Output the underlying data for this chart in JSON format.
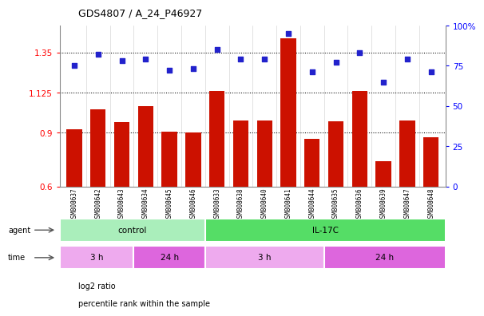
{
  "title": "GDS4807 / A_24_P46927",
  "samples": [
    "GSM808637",
    "GSM808642",
    "GSM808643",
    "GSM808634",
    "GSM808645",
    "GSM808646",
    "GSM808633",
    "GSM808638",
    "GSM808640",
    "GSM808641",
    "GSM808644",
    "GSM808635",
    "GSM808636",
    "GSM808639",
    "GSM808647",
    "GSM808648"
  ],
  "log2_ratio": [
    0.92,
    1.03,
    0.96,
    1.05,
    0.905,
    0.9,
    1.135,
    0.97,
    0.97,
    1.43,
    0.865,
    0.965,
    1.135,
    0.74,
    0.97,
    0.875
  ],
  "percentile": [
    75,
    82,
    78,
    79,
    72,
    73,
    85,
    79,
    79,
    95,
    71,
    77,
    83,
    65,
    79,
    71
  ],
  "ylim_left": [
    0.6,
    1.5
  ],
  "ylim_right": [
    0,
    100
  ],
  "yticks_left": [
    0.6,
    0.9,
    1.125,
    1.35
  ],
  "yticks_right": [
    0,
    25,
    50,
    75,
    100
  ],
  "ytick_labels_left": [
    "0.6",
    "0.9",
    "1.125",
    "1.35"
  ],
  "ytick_labels_right": [
    "0",
    "25",
    "50",
    "75",
    "100%"
  ],
  "hlines": [
    0.9,
    1.125,
    1.35
  ],
  "bar_color": "#cc1100",
  "dot_color": "#2222cc",
  "agent_groups": [
    {
      "label": "control",
      "start": 0,
      "end": 6,
      "color": "#aaeebb"
    },
    {
      "label": "IL-17C",
      "start": 6,
      "end": 16,
      "color": "#55dd66"
    }
  ],
  "time_groups": [
    {
      "label": "3 h",
      "start": 0,
      "end": 3,
      "color": "#eeaaee"
    },
    {
      "label": "24 h",
      "start": 3,
      "end": 6,
      "color": "#dd66dd"
    },
    {
      "label": "3 h",
      "start": 6,
      "end": 11,
      "color": "#eeaaee"
    },
    {
      "label": "24 h",
      "start": 11,
      "end": 16,
      "color": "#dd66dd"
    }
  ]
}
